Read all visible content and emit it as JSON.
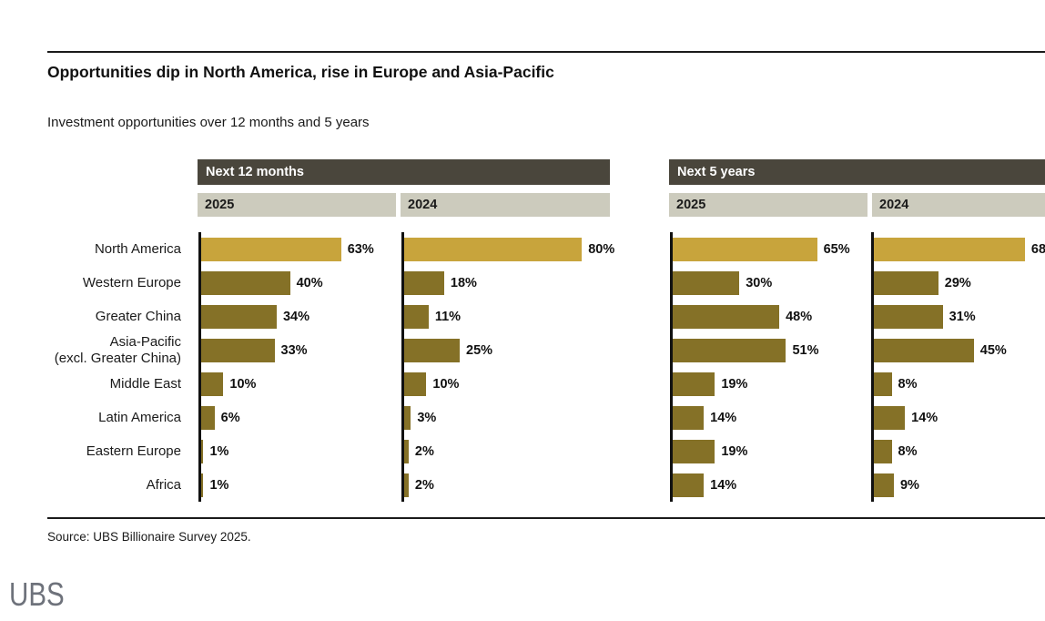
{
  "page": {
    "title": "Opportunities dip in North America, rise in Europe and Asia-Pacific",
    "subtitle": "Investment opportunities over 12 months and 5 years"
  },
  "chart_data": {
    "type": "bar",
    "orientation": "horizontal",
    "unit": "%",
    "xlim": [
      0,
      100
    ],
    "categories": [
      "North America",
      "Western Europe",
      "Greater China",
      "Asia-Pacific\n(excl. Greater China)",
      "Middle East",
      "Latin America",
      "Eastern Europe",
      "Africa"
    ],
    "groups": [
      {
        "label": "Next 12 months",
        "series": [
          {
            "name": "2025",
            "values": [
              63,
              40,
              34,
              33,
              10,
              6,
              1,
              1
            ]
          },
          {
            "name": "2024",
            "values": [
              80,
              18,
              11,
              25,
              10,
              3,
              2,
              2
            ]
          }
        ]
      },
      {
        "label": "Next 5 years",
        "series": [
          {
            "name": "2025",
            "values": [
              65,
              30,
              48,
              51,
              19,
              14,
              19,
              14
            ]
          },
          {
            "name": "2024",
            "values": [
              68,
              29,
              31,
              45,
              8,
              14,
              8,
              9
            ]
          }
        ]
      }
    ],
    "highlight_category_index": 0,
    "colors": {
      "highlight_bar": "#C8A43C",
      "bar": "#857127",
      "group_header_bg": "#4A463C",
      "group_header_text": "#FFFFFF",
      "year_cell_bg": "#CCCBBD",
      "axis": "#111111"
    }
  },
  "footer": {
    "source": "Source: UBS Billionaire Survey 2025.",
    "logo_text": "UBS"
  }
}
